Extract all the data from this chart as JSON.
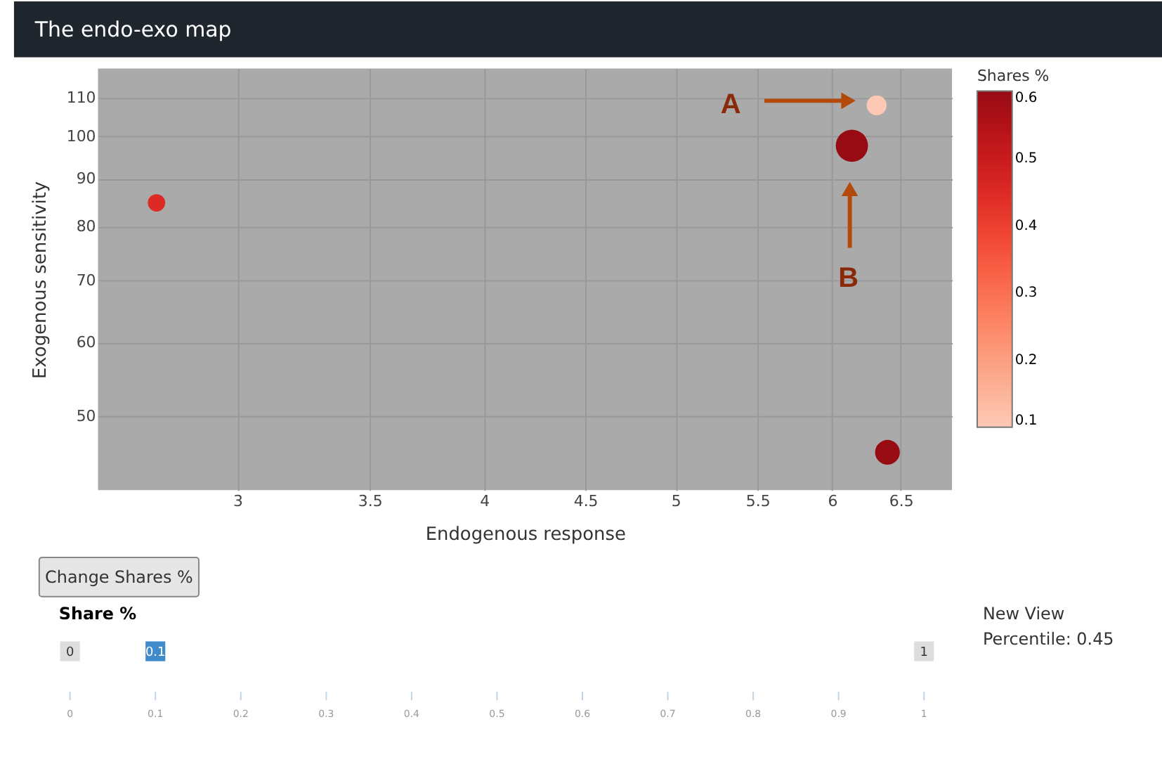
{
  "chart_data": {
    "type": "bubble",
    "title": "The endo-exo map",
    "xlabel": "Endogenous response",
    "ylabel": "Exogenous sensitivity",
    "clabel": "Shares %",
    "x": [
      2.73,
      6.32,
      6.14,
      6.4
    ],
    "values": [
      84.8,
      108,
      97.7,
      45.7
    ],
    "sizes": [
      0.29,
      0.38,
      1,
      0.59
    ],
    "cvalues": [
      0.45,
      0.1,
      0.6,
      0.6
    ],
    "clim": [
      0.1,
      0.6
    ],
    "cticks": [
      0.1,
      0.2,
      0.3,
      0.4,
      0.5,
      0.6
    ],
    "log": "xy",
    "xlim": [
      2.55,
      6.9
    ],
    "ylim": [
      41.6,
      118.3
    ],
    "xticks": [
      3,
      3.5,
      4,
      4.5,
      5,
      5.5,
      6,
      6.5
    ],
    "yticks": [
      50,
      60,
      70,
      80,
      90,
      100,
      110
    ],
    "grid": true,
    "annotations": [
      "A",
      "B",
      "Change Shares %",
      "Share %",
      "New View",
      "Percentile: 0.45",
      "0",
      "0.1",
      "1",
      "0",
      "0.1",
      "0.2",
      "0.3",
      "0.4",
      "0.5",
      "0.6",
      "0.7",
      "0.8",
      "0.9",
      "1"
    ]
  }
}
